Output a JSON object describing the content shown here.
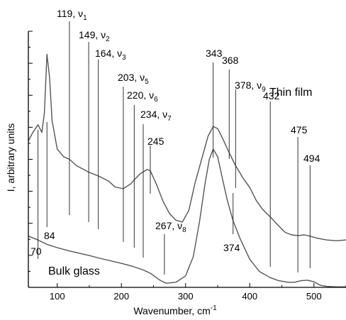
{
  "chart_data": {
    "type": "line",
    "xlabel": "Wavenumber, cm",
    "xlabel_sup": "-1",
    "ylabel": "I, arbitrary units",
    "xlim": [
      55,
      550
    ],
    "xticks": [
      100,
      200,
      300,
      400,
      500
    ],
    "yticks_count": 9,
    "y_tick_labels_shown": false,
    "grid": false,
    "series": [
      {
        "name": "Thin film",
        "x": [
          55,
          62,
          70,
          76,
          80,
          84,
          88,
          92,
          100,
          110,
          119,
          130,
          149,
          164,
          180,
          190,
          203,
          215,
          220,
          230,
          240,
          245,
          255,
          265,
          275,
          285,
          295,
          305,
          315,
          325,
          335,
          343,
          350,
          358,
          368,
          378,
          390,
          400,
          410,
          420,
          432,
          445,
          455,
          465,
          475,
          485,
          494,
          505,
          520,
          535,
          550
        ],
        "y": [
          5.72,
          6.05,
          6.35,
          6.05,
          6.8,
          9.1,
          8.2,
          6.5,
          5.4,
          5.1,
          5.0,
          4.75,
          4.5,
          4.35,
          4.15,
          3.92,
          3.85,
          4.05,
          4.2,
          4.45,
          4.6,
          4.55,
          4.0,
          3.35,
          2.88,
          2.62,
          2.55,
          3.0,
          4.1,
          5.0,
          5.9,
          6.28,
          6.2,
          5.8,
          5.25,
          4.75,
          4.25,
          3.9,
          3.4,
          3.05,
          2.75,
          2.4,
          2.15,
          2.05,
          2.02,
          2.05,
          2.0,
          1.92,
          1.85,
          1.82,
          1.85
        ]
      },
      {
        "name": "Bulk glass",
        "x": [
          55,
          70,
          84,
          100,
          119,
          149,
          164,
          203,
          220,
          234,
          245,
          260,
          270,
          285,
          300,
          312,
          322,
          330,
          337,
          343,
          350,
          357,
          365,
          374,
          385,
          400,
          415,
          432,
          445,
          460,
          470,
          480,
          490,
          500,
          510,
          520,
          535,
          550
        ],
        "y": [
          2.0,
          1.85,
          1.68,
          1.55,
          1.42,
          1.25,
          1.15,
          0.92,
          0.8,
          0.68,
          0.55,
          0.28,
          0.16,
          0.2,
          0.45,
          1.2,
          2.6,
          4.0,
          5.0,
          5.4,
          5.1,
          4.3,
          3.4,
          2.6,
          1.9,
          1.1,
          0.62,
          0.38,
          0.26,
          0.2,
          0.2,
          0.26,
          0.28,
          0.22,
          0.08,
          0.04,
          0.02,
          0.02
        ]
      }
    ],
    "peak_labels": [
      {
        "x": 70,
        "main": "70",
        "sub": ""
      },
      {
        "x": 84,
        "main": "84",
        "sub": ""
      },
      {
        "x": 119,
        "main": "119, ν",
        "sub": "1"
      },
      {
        "x": 149,
        "main": "149, ν",
        "sub": "2"
      },
      {
        "x": 164,
        "main": "164, ν",
        "sub": "3"
      },
      {
        "x": 203,
        "main": "203, ν",
        "sub": "5"
      },
      {
        "x": 220,
        "main": "220, ν",
        "sub": "6"
      },
      {
        "x": 234,
        "main": "234, ν",
        "sub": "7"
      },
      {
        "x": 245,
        "main": "245",
        "sub": ""
      },
      {
        "x": 267,
        "main": "267, ν",
        "sub": "8"
      },
      {
        "x": 343,
        "main": "343",
        "sub": ""
      },
      {
        "x": 368,
        "main": "368",
        "sub": ""
      },
      {
        "x": 374,
        "main": "374",
        "sub": ""
      },
      {
        "x": 378,
        "main": "378, ν",
        "sub": "9"
      },
      {
        "x": 432,
        "main": "432",
        "sub": ""
      },
      {
        "x": 475,
        "main": "475",
        "sub": ""
      },
      {
        "x": 494,
        "main": "494",
        "sub": ""
      }
    ],
    "annotations": [
      "Thin film",
      "Bulk glass"
    ]
  }
}
